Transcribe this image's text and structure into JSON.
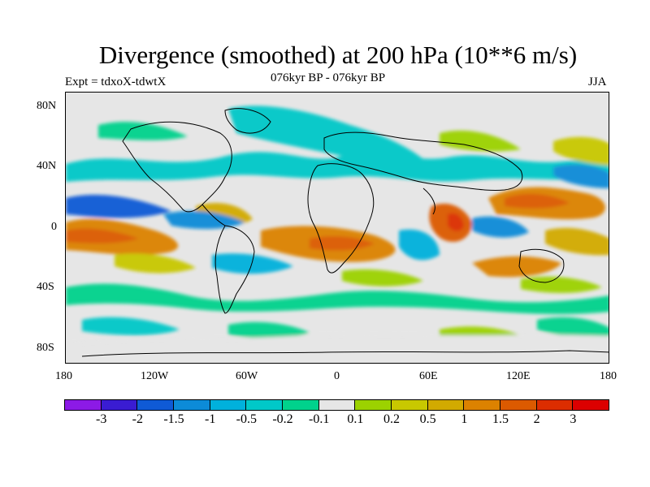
{
  "title": "Divergence (smoothed) at 200 hPa (10**6 m/s)",
  "left_label": "Expt = tdxoX-tdwtX",
  "center_label": "076kyr BP - 076kyr BP",
  "right_label": "JJA",
  "y_axis": [
    "80N",
    "40N",
    "0",
    "40S",
    "80S"
  ],
  "x_axis": [
    "180",
    "120W",
    "60W",
    "0",
    "60E",
    "120E",
    "180"
  ],
  "colorbar": {
    "colors": [
      "#8c1ae6",
      "#3a1cd2",
      "#0f5ad6",
      "#0c8bd8",
      "#00b1dc",
      "#00c8c8",
      "#00d28c",
      "#e6e6e6",
      "#9cd200",
      "#c8c800",
      "#d2aa00",
      "#dc8200",
      "#dc5a00",
      "#dc2d00",
      "#dc0000"
    ],
    "labels": [
      "-3",
      "-2",
      "-1.5",
      "-1",
      "-0.5",
      "-0.2",
      "-0.1",
      "0.1",
      "0.2",
      "0.5",
      "1",
      "1.5",
      "2",
      "3"
    ]
  }
}
